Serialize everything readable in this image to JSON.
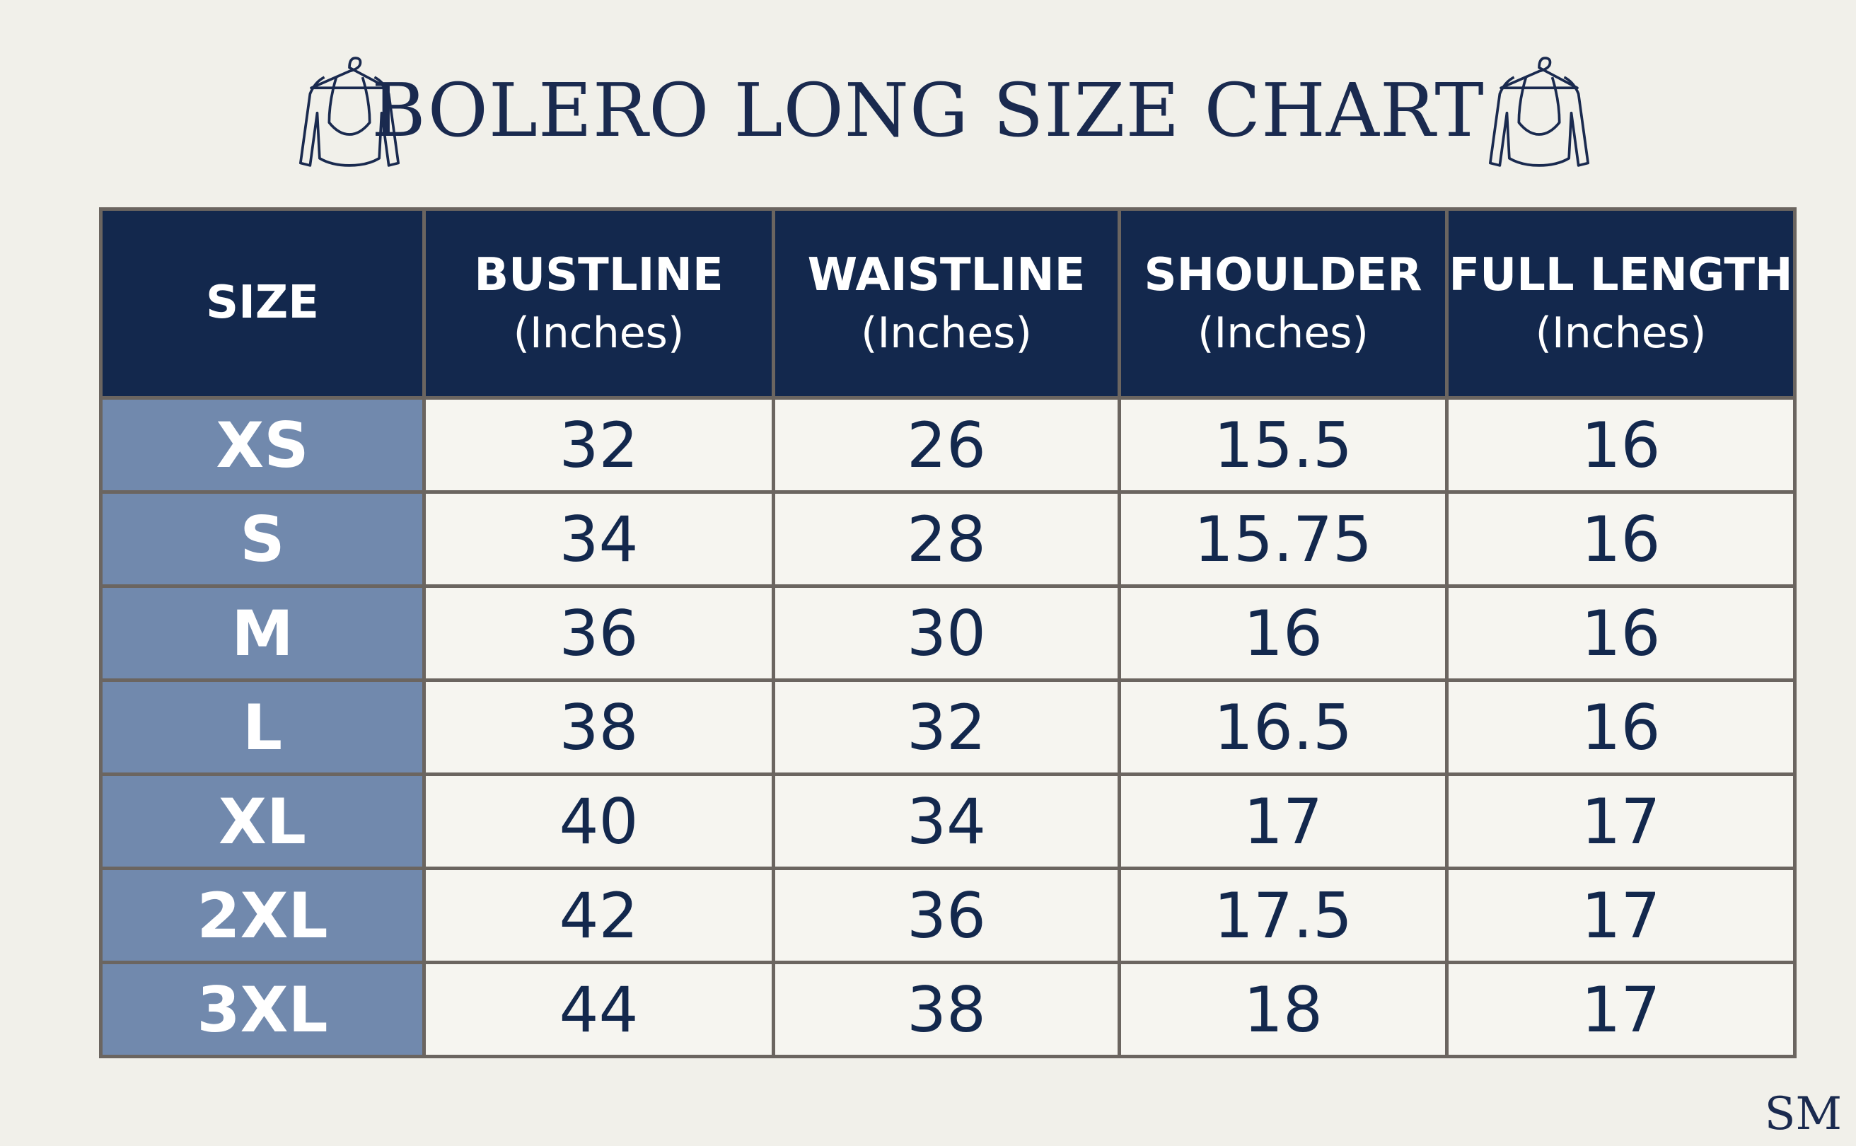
{
  "header": {
    "title": "BOLERO LONG SIZE CHART"
  },
  "table": {
    "columns": [
      {
        "name": "SIZE"
      },
      {
        "name": "BUSTLINE",
        "unit": "(Inches)"
      },
      {
        "name": "WAISTLINE",
        "unit": "(Inches)"
      },
      {
        "name": "SHOULDER",
        "unit": "(Inches)"
      },
      {
        "name": "FULL LENGTH",
        "unit": "(Inches)"
      }
    ],
    "rows": [
      [
        "XS",
        32,
        26,
        15.5,
        16
      ],
      [
        "S",
        34,
        28,
        15.75,
        16
      ],
      [
        "M",
        36,
        30,
        16,
        16
      ],
      [
        "L",
        38,
        32,
        16.5,
        16
      ],
      [
        "XL",
        40,
        34,
        17,
        17
      ],
      [
        "2XL",
        42,
        36,
        17.5,
        17
      ],
      [
        "3XL",
        44,
        38,
        18,
        17
      ]
    ]
  },
  "logo": "SM"
}
